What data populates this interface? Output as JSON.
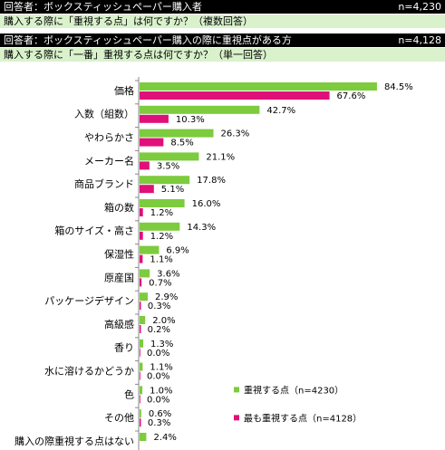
{
  "header": {
    "row1_text": "回答者：ボックスティッシュペーパー購入者",
    "row1_n": "n=4,230",
    "row2_text": "購入する際に「重視する点」は何ですか？（複数回答）",
    "row3_text": "回答者：ボックスティッシュペーパー購入の際に重視点がある方",
    "row3_n": "n=4,128",
    "row4_text": "購入する際に「一番」重視する点は何ですか？（単一回答）"
  },
  "chart_data": {
    "type": "bar",
    "orientation": "horizontal",
    "categories": [
      "価格",
      "入数（組数）",
      "やわらかさ",
      "メーカー名",
      "商品ブランド",
      "箱の数",
      "箱のサイズ・高さ",
      "保湿性",
      "原産国",
      "パッケージデザイン",
      "高級感",
      "香り",
      "水に溶けるかどうか",
      "色",
      "その他",
      "購入の際重視する点はない"
    ],
    "series": [
      {
        "name": "重視する点（n=4230）",
        "color": "#7dcb3f",
        "values": [
          84.5,
          42.7,
          26.3,
          21.1,
          17.8,
          16.0,
          14.3,
          6.9,
          3.6,
          2.9,
          2.0,
          1.3,
          1.1,
          1.0,
          0.6,
          2.4
        ],
        "labels": [
          "84.5%",
          "42.7%",
          "26.3%",
          "21.1%",
          "17.8%",
          "16.0%",
          "14.3%",
          "6.9%",
          "3.6%",
          "2.9%",
          "2.0%",
          "1.3%",
          "1.1%",
          "1.0%",
          "0.6%",
          "2.4%"
        ]
      },
      {
        "name": "最も重視する点（n=4128）",
        "color": "#e0107a",
        "values": [
          67.6,
          10.3,
          8.5,
          3.5,
          5.1,
          1.2,
          1.2,
          1.1,
          0.7,
          0.3,
          0.2,
          0.0,
          0.0,
          0.0,
          0.3,
          null
        ],
        "labels": [
          "67.6%",
          "10.3%",
          "8.5%",
          "3.5%",
          "5.1%",
          "1.2%",
          "1.2%",
          "1.1%",
          "0.7%",
          "0.3%",
          "0.2%",
          "0.0%",
          "0.0%",
          "0.0%",
          "0.3%",
          ""
        ]
      }
    ],
    "xlim": [
      0,
      100
    ],
    "grid": false,
    "legend_position": "bottom-right"
  }
}
